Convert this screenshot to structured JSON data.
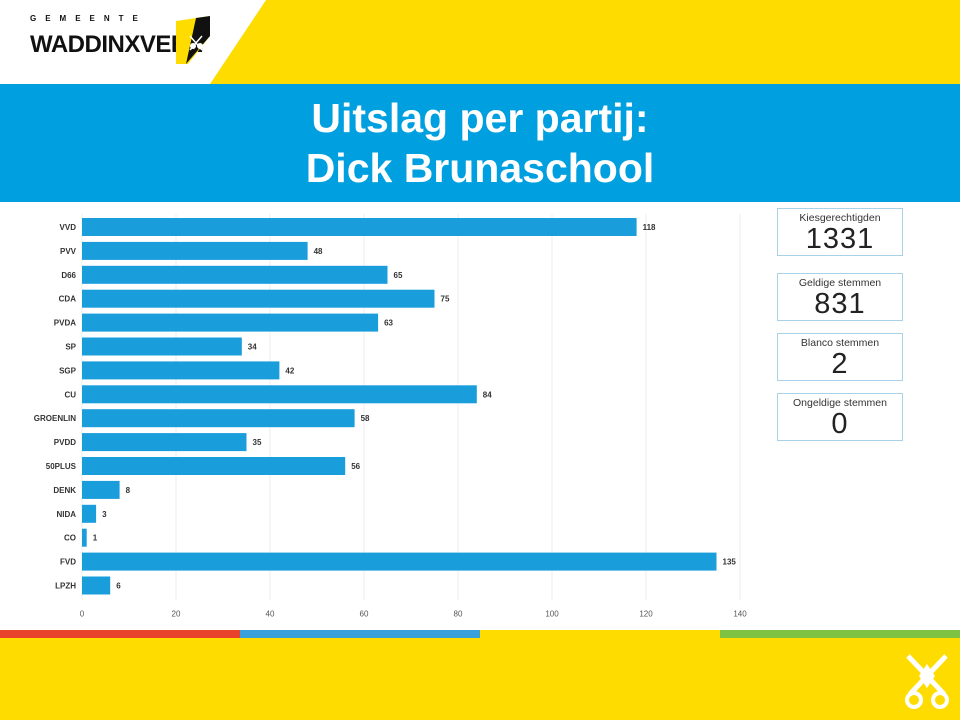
{
  "logo": {
    "small_text": "GEMEENTE",
    "name": "WADDINXVEEN"
  },
  "title": {
    "line1": "Uitslag per partij:",
    "line2": "Dick Brunaschool"
  },
  "stats": [
    {
      "label": "Kiesgerechtigden",
      "value": "1331"
    },
    {
      "label": "Geldige stemmen",
      "value": "831"
    },
    {
      "label": "Blanco stemmen",
      "value": "2"
    },
    {
      "label": "Ongeldige stemmen",
      "value": "0"
    }
  ],
  "colors": {
    "bar": "#1a9ddb",
    "title_band": "#009fdf",
    "yellow": "#ffdc00",
    "stripe_red": "#e8412c",
    "stripe_blue": "#3aa0dc",
    "stripe_yellow": "#ffdc00",
    "stripe_green": "#7dc242"
  },
  "chart_data": {
    "type": "bar",
    "orientation": "horizontal",
    "categories": [
      "VVD",
      "PVV",
      "D66",
      "CDA",
      "PVDA",
      "SP",
      "SGP",
      "CU",
      "GROENLIN",
      "PVDD",
      "50PLUS",
      "DENK",
      "NIDA",
      "CO",
      "FVD",
      "LPZH"
    ],
    "values": [
      118,
      48,
      65,
      75,
      63,
      34,
      42,
      84,
      58,
      35,
      56,
      8,
      3,
      1,
      135,
      6
    ],
    "xlim": [
      0,
      140
    ],
    "xticks": [
      0,
      20,
      40,
      60,
      80,
      100,
      120,
      140
    ],
    "grid": true,
    "data_labels": true
  }
}
